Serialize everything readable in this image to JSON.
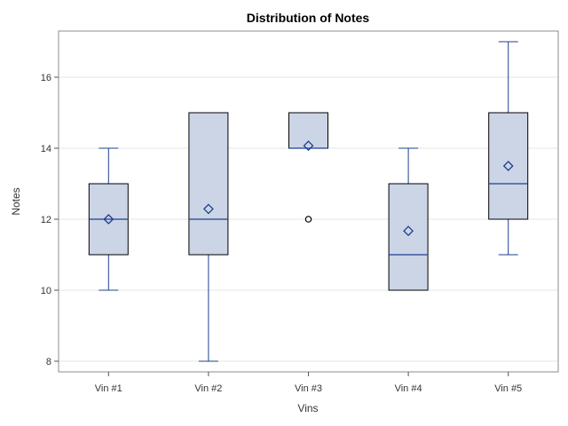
{
  "chart_data": {
    "type": "boxplot",
    "title": "Distribution of Notes",
    "xlabel": "Vins",
    "ylabel": "Notes",
    "ylim": [
      7.8,
      17.3
    ],
    "yticks": [
      8,
      10,
      12,
      14,
      16
    ],
    "grid": true,
    "categories": [
      "Vin #1",
      "Vin #2",
      "Vin #3",
      "Vin #4",
      "Vin #5"
    ],
    "boxes": [
      {
        "category": "Vin #1",
        "whisker_low": 10,
        "q1": 11,
        "median": 12,
        "q3": 13,
        "whisker_high": 14,
        "mean": 12.0,
        "outliers": []
      },
      {
        "category": "Vin #2",
        "whisker_low": 8,
        "q1": 11,
        "median": 12,
        "q3": 15,
        "whisker_high": 15,
        "mean": 12.29,
        "outliers": []
      },
      {
        "category": "Vin #3",
        "whisker_low": 14,
        "q1": 14,
        "median": 14,
        "q3": 15,
        "whisker_high": 15,
        "mean": 14.07,
        "outliers": [
          12
        ]
      },
      {
        "category": "Vin #4",
        "whisker_low": 10,
        "q1": 10,
        "median": 11,
        "q3": 13,
        "whisker_high": 14,
        "mean": 11.67,
        "outliers": []
      },
      {
        "category": "Vin #5",
        "whisker_low": 11,
        "q1": 12,
        "median": 13,
        "q3": 15,
        "whisker_high": 17,
        "mean": 13.5,
        "outliers": []
      }
    ],
    "colors": {
      "box_fill": "#cbd5e6",
      "box_edge": "#000000",
      "whisker": "#1f3f8f",
      "median": "#1f3f8f",
      "mean_marker": "#1f3f8f",
      "outlier": "#000000",
      "grid": "#e6e6e6",
      "frame": "#8c8c8c"
    }
  }
}
